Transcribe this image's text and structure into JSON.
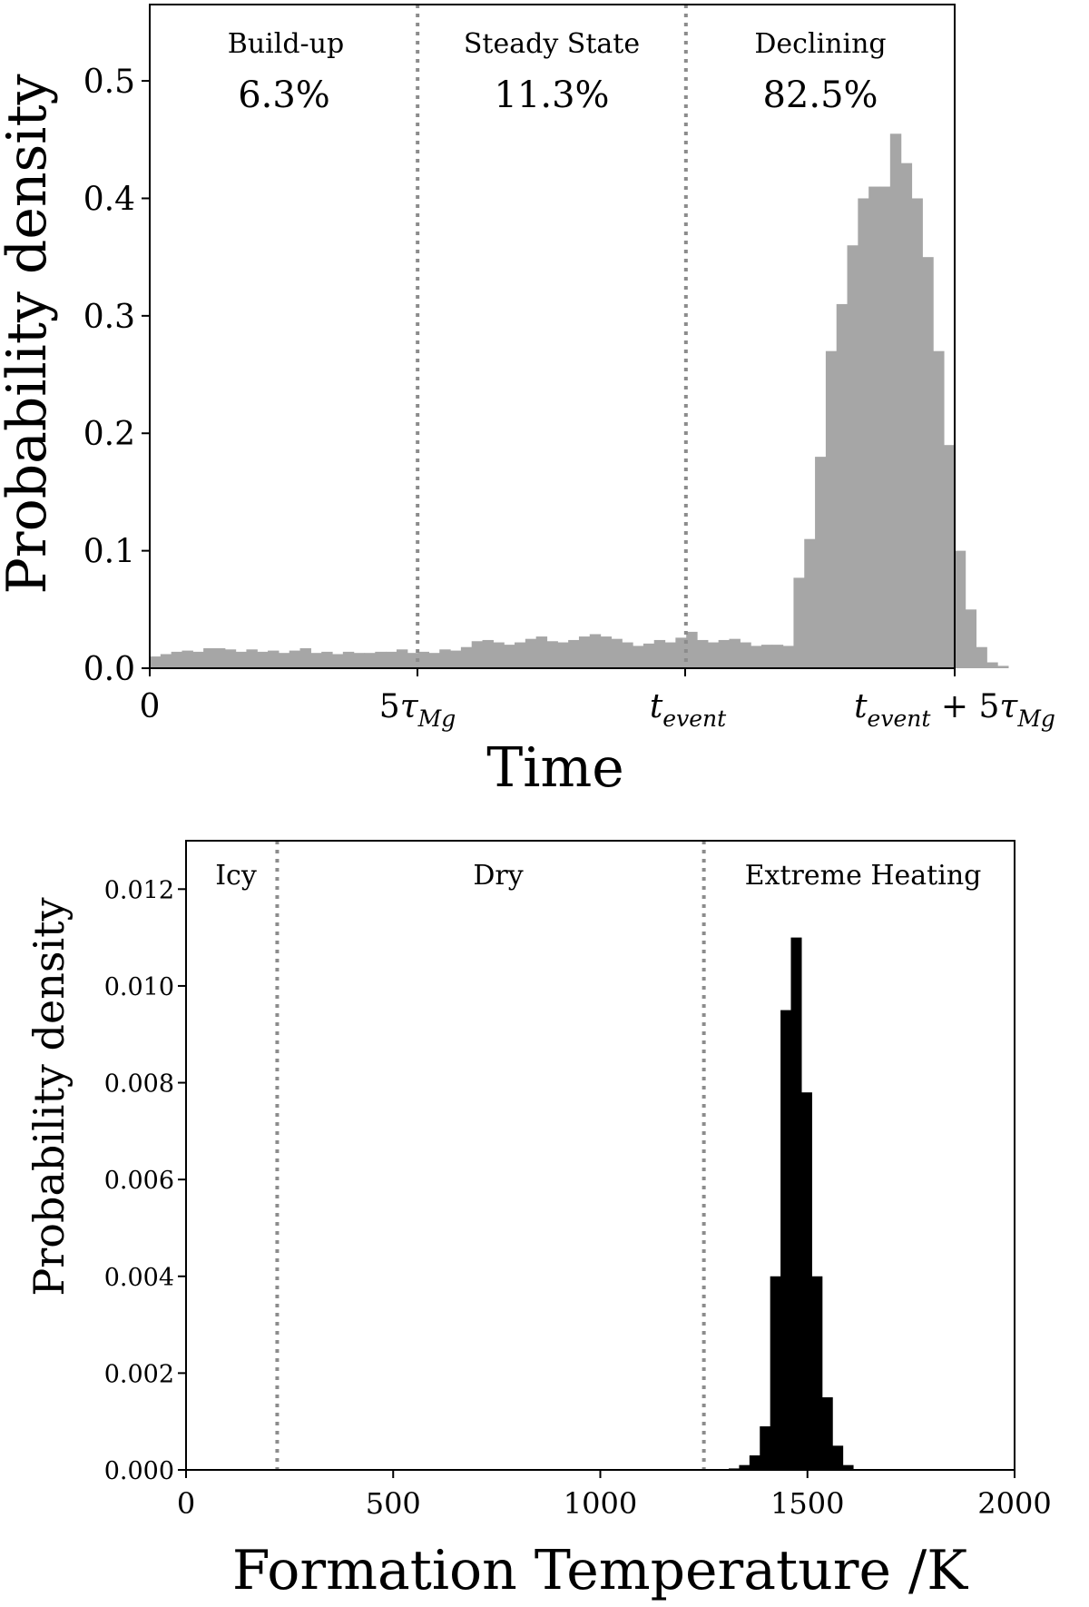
{
  "chart_data": [
    {
      "type": "bar",
      "xlabel": "Time",
      "ylabel": "Probability density",
      "ylim": [
        0,
        0.565
      ],
      "yticks": [
        "0.0",
        "0.1",
        "0.2",
        "0.3",
        "0.4",
        "0.5"
      ],
      "xtick_labels": [
        "0",
        "5τ_Mg",
        "t_event",
        "t_event + 5τ_Mg"
      ],
      "bar_color": "#a6a6a6",
      "regions": [
        {
          "label": "Build-up",
          "percent": "6.3%"
        },
        {
          "label": "Steady State",
          "percent": "11.3%"
        },
        {
          "label": "Declining",
          "percent": "82.5%"
        }
      ],
      "region_boundaries": [
        "5τ_Mg",
        "t_event"
      ],
      "x_units": "fraction of t_event + 5τ_Mg",
      "bin_width": 0.01333,
      "values": [
        0.01,
        0.012,
        0.014,
        0.015,
        0.014,
        0.017,
        0.017,
        0.016,
        0.014,
        0.016,
        0.014,
        0.015,
        0.013,
        0.015,
        0.017,
        0.013,
        0.014,
        0.012,
        0.014,
        0.013,
        0.013,
        0.014,
        0.014,
        0.016,
        0.013,
        0.014,
        0.013,
        0.016,
        0.015,
        0.018,
        0.023,
        0.024,
        0.022,
        0.02,
        0.022,
        0.025,
        0.027,
        0.023,
        0.022,
        0.024,
        0.027,
        0.029,
        0.027,
        0.025,
        0.022,
        0.019,
        0.021,
        0.024,
        0.022,
        0.026,
        0.031,
        0.024,
        0.022,
        0.024,
        0.025,
        0.022,
        0.019,
        0.02,
        0.02,
        0.019,
        0.077,
        0.11,
        0.18,
        0.27,
        0.31,
        0.36,
        0.4,
        0.41,
        0.41,
        0.455,
        0.43,
        0.4,
        0.35,
        0.27,
        0.19,
        0.1,
        0.05,
        0.018,
        0.005,
        0.002
      ]
    },
    {
      "type": "bar",
      "xlabel": "Formation Temperature /K",
      "ylabel": "Probability density",
      "xlim": [
        0,
        2000
      ],
      "ylim": [
        0,
        0.013
      ],
      "xticks": [
        "0",
        "500",
        "1000",
        "1500",
        "2000"
      ],
      "yticks": [
        "0.000",
        "0.002",
        "0.004",
        "0.006",
        "0.008",
        "0.010",
        "0.012"
      ],
      "bar_color": "#000000",
      "regions": [
        {
          "label": "Icy"
        },
        {
          "label": "Dry"
        },
        {
          "label": "Extreme Heating"
        }
      ],
      "region_boundaries": [
        220,
        1250
      ],
      "bin_edges_start": 1310,
      "bin_width": 25,
      "values": [
        3e-05,
        0.0001,
        0.0003,
        0.0009,
        0.004,
        0.0095,
        0.011,
        0.0078,
        0.004,
        0.0015,
        0.0005,
        0.0001
      ]
    }
  ]
}
